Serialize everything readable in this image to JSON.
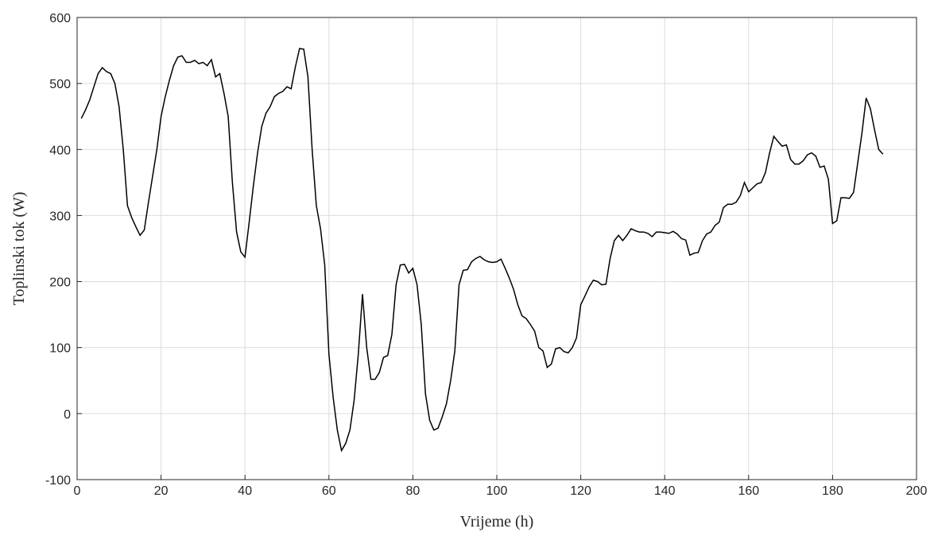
{
  "chart_data": {
    "type": "line",
    "xlabel": "Vrijeme (h)",
    "ylabel": "Toplinski tok (W)",
    "xlim": [
      0,
      200
    ],
    "xticks": [
      0,
      20,
      40,
      60,
      80,
      100,
      120,
      140,
      160,
      180,
      200
    ],
    "ylim": [
      -100,
      600
    ],
    "yticks": [
      -100,
      0,
      100,
      200,
      300,
      400,
      500,
      600
    ],
    "grid": true,
    "x": [
      1,
      2,
      3,
      4,
      5,
      6,
      7,
      8,
      9,
      10,
      11,
      12,
      13,
      14,
      15,
      16,
      17,
      18,
      19,
      20,
      21,
      22,
      23,
      24,
      25,
      26,
      27,
      28,
      29,
      30,
      31,
      32,
      33,
      34,
      35,
      36,
      37,
      38,
      39,
      40,
      41,
      42,
      43,
      44,
      45,
      46,
      47,
      48,
      49,
      50,
      51,
      52,
      53,
      54,
      55,
      56,
      57,
      58,
      59,
      60,
      61,
      62,
      63,
      64,
      65,
      66,
      67,
      68,
      69,
      70,
      71,
      72,
      73,
      74,
      75,
      76,
      77,
      78,
      79,
      80,
      81,
      82,
      83,
      84,
      85,
      86,
      87,
      88,
      89,
      90,
      91,
      92,
      93,
      94,
      95,
      96,
      97,
      98,
      99,
      100,
      101,
      102,
      103,
      104,
      105,
      106,
      107,
      108,
      109,
      110,
      111,
      112,
      113,
      114,
      115,
      116,
      117,
      118,
      119,
      120,
      121,
      122,
      123,
      124,
      125,
      126,
      127,
      128,
      129,
      130,
      131,
      132,
      133,
      134,
      135,
      136,
      137,
      138,
      139,
      140,
      141,
      142,
      143,
      144,
      145,
      146,
      147,
      148,
      149,
      150,
      151,
      152,
      153,
      154,
      155,
      156,
      157,
      158,
      159,
      160,
      161,
      162,
      163,
      164,
      165,
      166,
      167,
      168,
      169,
      170,
      171,
      172,
      173,
      174,
      175,
      176,
      177,
      178,
      179,
      180,
      181,
      182,
      183,
      184,
      185,
      186,
      187,
      188,
      189,
      190,
      191,
      192
    ],
    "series": [
      {
        "color": "#000000",
        "values": [
          447,
          460,
          475,
          495,
          515,
          524,
          518,
          515,
          500,
          465,
          400,
          315,
          297,
          283,
          270,
          278,
          320,
          360,
          400,
          450,
          480,
          505,
          527,
          540,
          542,
          532,
          532,
          535,
          530,
          532,
          527,
          536,
          510,
          515,
          485,
          450,
          350,
          275,
          245,
          237,
          290,
          345,
          395,
          435,
          455,
          465,
          480,
          485,
          488,
          495,
          492,
          525,
          553,
          552,
          510,
          400,
          315,
          280,
          225,
          90,
          25,
          -25,
          -56,
          -45,
          -25,
          20,
          90,
          181,
          100,
          52,
          52,
          62,
          85,
          88,
          120,
          195,
          225,
          226,
          213,
          220,
          195,
          135,
          30,
          -10,
          -25,
          -22,
          -5,
          15,
          50,
          95,
          195,
          217,
          218,
          230,
          235,
          238,
          233,
          230,
          229,
          230,
          234,
          220,
          205,
          188,
          165,
          148,
          144,
          135,
          125,
          100,
          95,
          70,
          75,
          98,
          100,
          94,
          92,
          100,
          115,
          165,
          178,
          192,
          202,
          200,
          195,
          196,
          235,
          262,
          270,
          262,
          270,
          280,
          277,
          275,
          275,
          273,
          268,
          275,
          275,
          274,
          273,
          276,
          272,
          265,
          263,
          240,
          243,
          244,
          262,
          272,
          275,
          285,
          290,
          312,
          317,
          317,
          320,
          330,
          350,
          336,
          342,
          348,
          350,
          365,
          395,
          420,
          412,
          405,
          407,
          385,
          378,
          378,
          383,
          392,
          395,
          390,
          373,
          375,
          355,
          288,
          292,
          327,
          327,
          326,
          335,
          380,
          425,
          478,
          462,
          430,
          400,
          393
        ]
      }
    ]
  }
}
